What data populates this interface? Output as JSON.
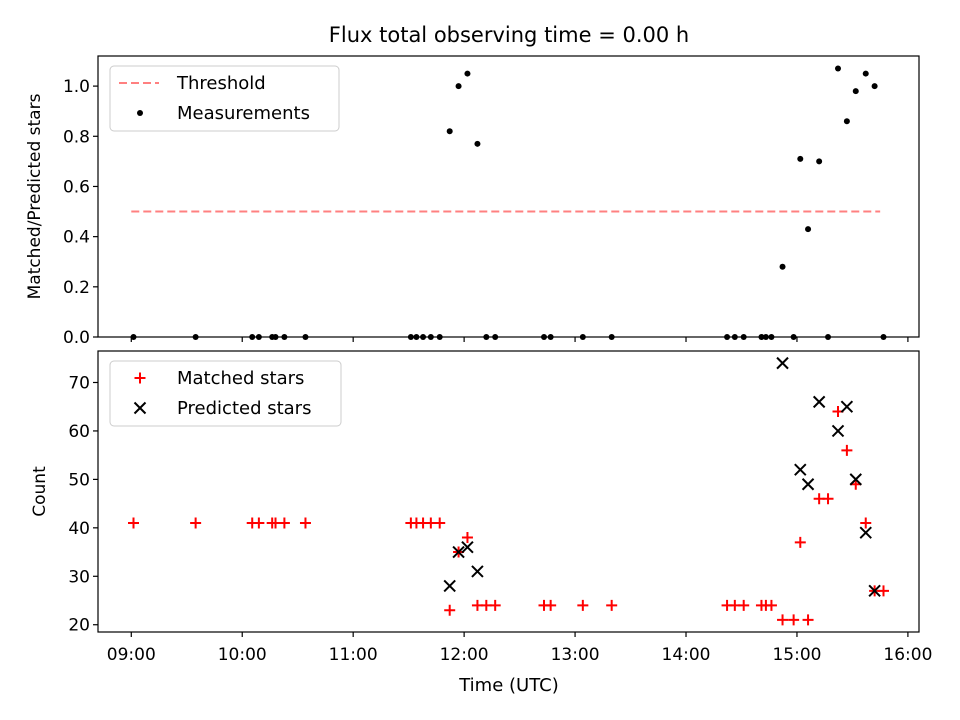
{
  "figure": {
    "title": "Flux total observing time = 0.00 h",
    "xlabel": "Time (UTC)"
  },
  "chart_data": [
    {
      "type": "scatter",
      "title": "Flux total observing time = 0.00 h",
      "xlabel": "",
      "ylabel": "Matched/Predicted stars",
      "xlim_hours": [
        8.7,
        16.1
      ],
      "ylim": [
        0,
        1.12
      ],
      "yticks": [
        0.0,
        0.2,
        0.4,
        0.6,
        0.8,
        1.0
      ],
      "legend": {
        "position": "top-left",
        "entries": [
          "Threshold",
          "Measurements"
        ]
      },
      "threshold": {
        "name": "Threshold",
        "value": 0.5,
        "x_range": [
          9.0,
          15.75
        ],
        "color": "#ff8080",
        "style": "dashed"
      },
      "series": [
        {
          "name": "Measurements",
          "marker": "dot",
          "color": "#000000",
          "x": [
            9.02,
            9.58,
            10.09,
            10.15,
            10.27,
            10.3,
            10.38,
            10.57,
            11.52,
            11.57,
            11.63,
            11.7,
            11.78,
            11.87,
            11.95,
            12.03,
            12.12,
            12.2,
            12.28,
            12.72,
            12.78,
            13.07,
            13.33,
            14.37,
            14.44,
            14.52,
            14.68,
            14.72,
            14.77,
            14.87,
            14.97,
            15.03,
            15.1,
            15.2,
            15.28,
            15.37,
            15.45,
            15.53,
            15.62,
            15.7,
            15.78
          ],
          "y": [
            0,
            0,
            0,
            0,
            0,
            0,
            0,
            0,
            0,
            0,
            0,
            0,
            0,
            0.82,
            1.0,
            1.05,
            0.77,
            0,
            0,
            0,
            0,
            0,
            0,
            0,
            0,
            0,
            0,
            0,
            0,
            0.28,
            0,
            0.71,
            0.43,
            0.7,
            0,
            1.07,
            0.86,
            0.98,
            1.05,
            1.0,
            0
          ]
        }
      ]
    },
    {
      "type": "scatter",
      "title": "",
      "xlabel": "Time (UTC)",
      "ylabel": "Count",
      "xlim_hours": [
        8.7,
        16.1
      ],
      "ylim": [
        18.5,
        76.5
      ],
      "yticks": [
        20,
        30,
        40,
        50,
        60,
        70
      ],
      "xticks": [
        "09:00",
        "10:00",
        "11:00",
        "12:00",
        "13:00",
        "14:00",
        "15:00",
        "16:00"
      ],
      "xtick_hours": [
        9,
        10,
        11,
        12,
        13,
        14,
        15,
        16
      ],
      "legend": {
        "position": "top-left",
        "entries": [
          "Matched stars",
          "Predicted stars"
        ]
      },
      "series": [
        {
          "name": "Matched stars",
          "marker": "plus",
          "color": "#ff0000",
          "x": [
            9.02,
            9.58,
            10.09,
            10.15,
            10.27,
            10.3,
            10.38,
            10.57,
            11.52,
            11.57,
            11.63,
            11.7,
            11.78,
            11.87,
            11.95,
            12.03,
            12.12,
            12.2,
            12.28,
            12.72,
            12.78,
            13.07,
            13.33,
            14.37,
            14.44,
            14.52,
            14.68,
            14.72,
            14.77,
            14.87,
            14.97,
            15.03,
            15.1,
            15.2,
            15.28,
            15.37,
            15.45,
            15.53,
            15.62,
            15.7,
            15.78
          ],
          "y": [
            41,
            41,
            41,
            41,
            41,
            41,
            41,
            41,
            41,
            41,
            41,
            41,
            41,
            23,
            35,
            38,
            24,
            24,
            24,
            24,
            24,
            24,
            24,
            24,
            24,
            24,
            24,
            24,
            24,
            21,
            21,
            37,
            21,
            46,
            46,
            64,
            56,
            49,
            41,
            27,
            27
          ]
        },
        {
          "name": "Predicted stars",
          "marker": "x",
          "color": "#000000",
          "x": [
            11.87,
            11.95,
            12.03,
            12.12,
            14.87,
            15.03,
            15.1,
            15.2,
            15.37,
            15.45,
            15.53,
            15.62,
            15.7
          ],
          "y": [
            28,
            35,
            36,
            31,
            74,
            52,
            49,
            66,
            60,
            65,
            50,
            39,
            27
          ]
        }
      ]
    }
  ]
}
